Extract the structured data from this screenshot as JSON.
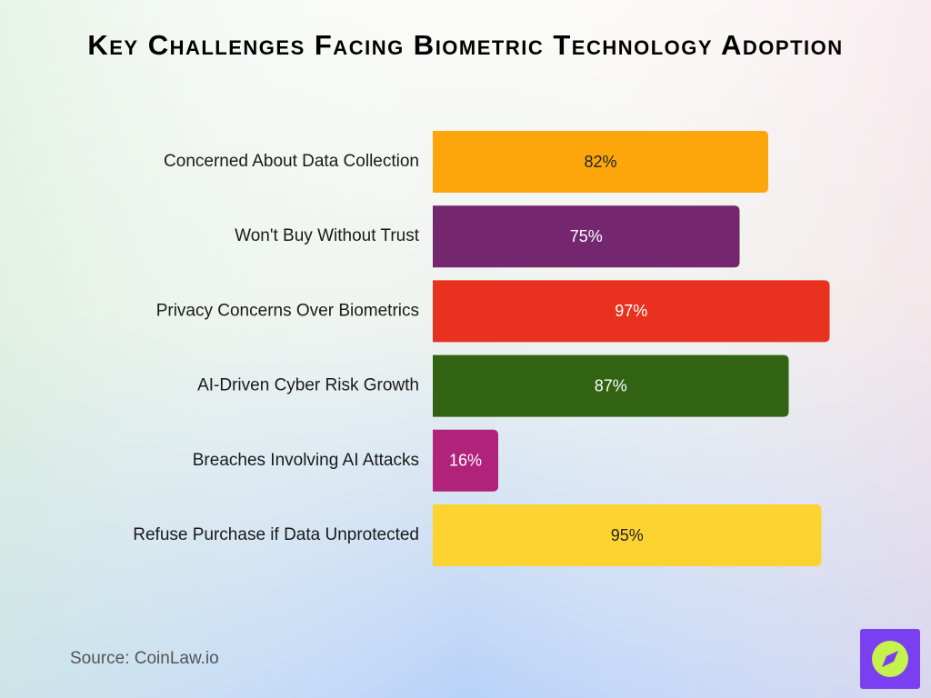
{
  "chart_data": {
    "type": "bar",
    "orientation": "horizontal",
    "title": "Key Challenges Facing Biometric Technology Adoption",
    "categories": [
      "Concerned About Data Collection",
      "Won't Buy Without Trust",
      "Privacy Concerns Over Biometrics",
      "AI-Driven Cyber Risk Growth",
      "Breaches Involving AI Attacks",
      "Refuse Purchase if Data Unprotected"
    ],
    "values": [
      82,
      75,
      97,
      87,
      16,
      95
    ],
    "value_labels": [
      "82%",
      "75%",
      "97%",
      "87%",
      "16%",
      "95%"
    ],
    "colors": [
      "#fca60b",
      "#74276f",
      "#e8311f",
      "#326312",
      "#b1227b",
      "#fdd332"
    ],
    "source": "Source: CoinLaw.io"
  }
}
